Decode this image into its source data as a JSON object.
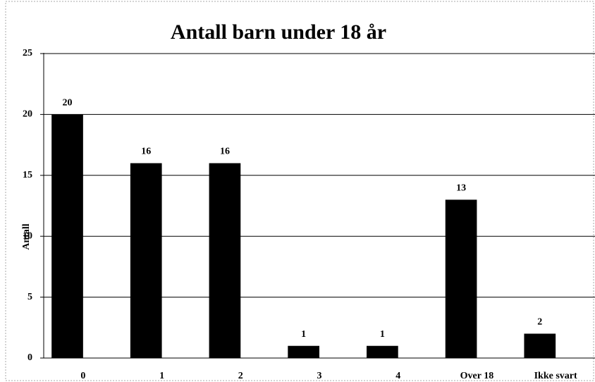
{
  "chart_data": {
    "type": "bar",
    "title": "Antall barn under 18 år",
    "y_label": "Antall",
    "categories": [
      "0",
      "1",
      "2",
      "3",
      "4",
      "Over 18",
      "Ikke svart"
    ],
    "values": [
      20,
      16,
      16,
      1,
      1,
      13,
      2
    ],
    "color": "#000000",
    "ylim": [
      0,
      25
    ],
    "yticks": [
      0,
      5,
      10,
      15,
      20,
      25
    ],
    "grid": true
  }
}
